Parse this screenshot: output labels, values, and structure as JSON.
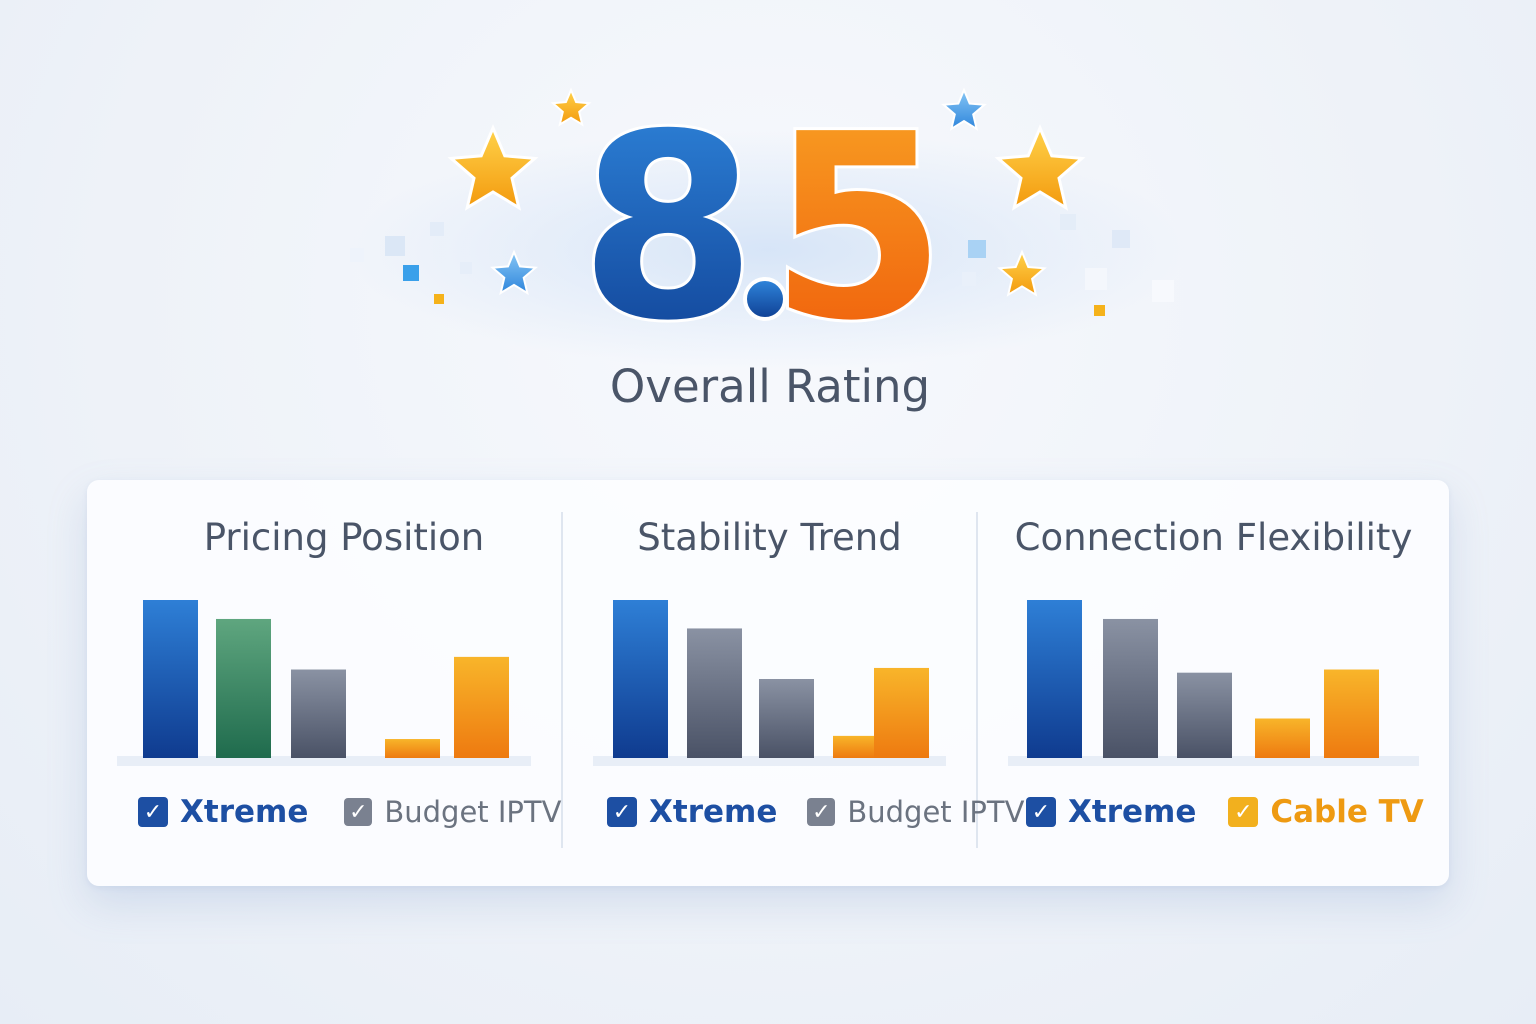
{
  "rating": {
    "integer_part": "8",
    "decimal_point": ".",
    "fraction_part": "5",
    "label": "Overall Rating"
  },
  "colors": {
    "rating_blue": "#1559b8",
    "rating_orange": "#f26b12",
    "star_gold": "#f7b21a",
    "star_blue": "#4da3ea",
    "bar_blue": "#1a59b8",
    "bar_green": "#3a8b67",
    "bar_slate": "#5e6678",
    "bar_orange": "#f39a1c",
    "checkbox_blue": "#1d4fa3",
    "checkbox_gray": "#7a8190",
    "checkbox_orange": "#f2b01e",
    "text_dark": "#4a5568"
  },
  "chart_data": [
    {
      "type": "bar",
      "title": "Pricing Position",
      "values": [
        100,
        88,
        56,
        12,
        64
      ],
      "colors": [
        "blue",
        "green",
        "slate",
        "orange",
        "orange"
      ],
      "legend": [
        {
          "label": "Xtreme",
          "checked": true,
          "style": "blue"
        },
        {
          "label": "Budget IPTV",
          "checked": true,
          "style": "gray"
        }
      ]
    },
    {
      "type": "bar",
      "title": "Stability Trend",
      "values": [
        100,
        82,
        50,
        14,
        57
      ],
      "colors": [
        "blue",
        "slate",
        "slate",
        "orange",
        "orange"
      ],
      "legend": [
        {
          "label": "Xtreme",
          "checked": true,
          "style": "blue"
        },
        {
          "label": "Budget IPTV",
          "checked": true,
          "style": "gray"
        }
      ]
    },
    {
      "type": "bar",
      "title": "Connection Flexibility",
      "values": [
        100,
        88,
        54,
        25,
        56
      ],
      "colors": [
        "blue",
        "slate",
        "slate",
        "orange",
        "orange"
      ],
      "legend": [
        {
          "label": "Xtreme",
          "checked": true,
          "style": "blue"
        },
        {
          "label": "Cable TV",
          "checked": true,
          "style": "orange"
        }
      ]
    }
  ]
}
